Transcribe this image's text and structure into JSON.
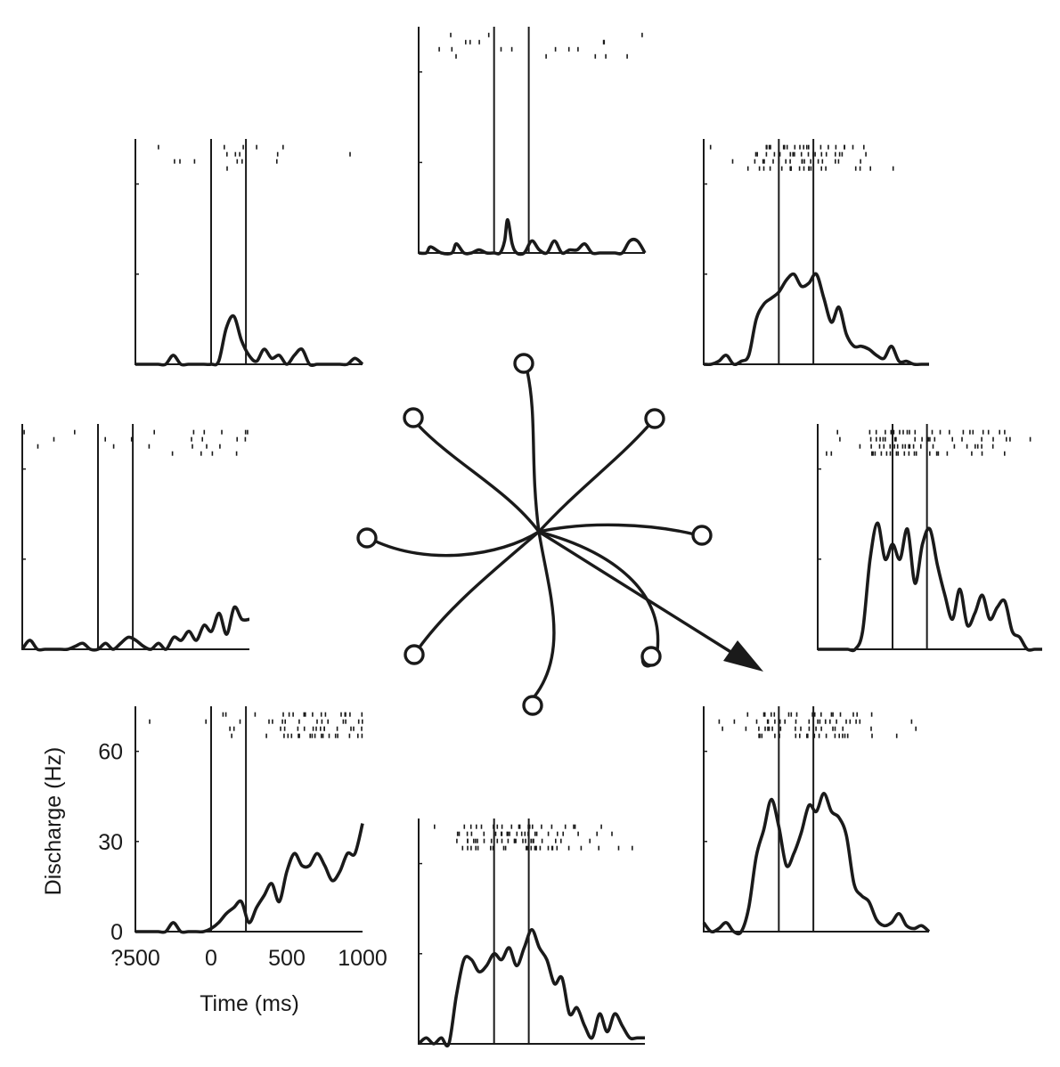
{
  "chart_data": {
    "type": "line",
    "figure": "peri-event rasters and spike density functions for eight reach directions",
    "xlabel": "Time (ms)",
    "ylabel": "Discharge (Hz)",
    "x_ticks": [
      "?500",
      "0",
      "500",
      "1000"
    ],
    "y_ticks": [
      "0",
      "30",
      "60"
    ],
    "xlim": [
      -500,
      1000
    ],
    "ylim": [
      0,
      75
    ],
    "event_lines_ms": [
      0,
      230
    ],
    "panels": [
      {
        "direction": "up",
        "x": [
          -500,
          -450,
          -420,
          -350,
          -280,
          -250,
          -200,
          -150,
          -100,
          -50,
          0,
          40,
          70,
          90,
          120,
          150,
          200,
          250,
          300,
          350,
          400,
          450,
          500,
          550,
          600,
          650,
          700,
          750,
          800,
          850,
          900,
          950,
          1000
        ],
        "y": [
          0,
          0,
          2,
          0,
          0,
          3,
          0,
          0,
          1,
          0,
          0,
          0,
          4,
          11,
          3,
          0,
          0,
          4,
          1,
          0,
          4,
          0,
          1,
          1,
          3,
          0,
          0,
          0,
          0,
          0,
          4,
          4,
          0
        ]
      },
      {
        "direction": "up-right",
        "x": [
          -500,
          -450,
          -400,
          -350,
          -300,
          -250,
          -200,
          -150,
          -100,
          -50,
          0,
          50,
          100,
          150,
          200,
          250,
          300,
          350,
          400,
          450,
          500,
          550,
          600,
          650,
          700,
          750,
          800,
          850,
          900,
          950,
          1000
        ],
        "y": [
          0,
          0,
          1,
          3,
          0,
          1,
          3,
          15,
          20,
          22,
          24,
          28,
          30,
          26,
          27,
          30,
          22,
          14,
          19,
          10,
          6,
          6,
          5,
          3,
          2,
          6,
          1,
          1,
          0,
          0,
          0
        ]
      },
      {
        "direction": "right",
        "x": [
          -500,
          -450,
          -400,
          -350,
          -300,
          -250,
          -200,
          -150,
          -100,
          -50,
          0,
          50,
          100,
          150,
          200,
          250,
          300,
          350,
          400,
          450,
          500,
          550,
          600,
          650,
          700,
          750,
          800,
          850,
          900,
          950,
          1000
        ],
        "y": [
          0,
          0,
          0,
          0,
          0,
          0,
          6,
          30,
          42,
          30,
          35,
          30,
          40,
          22,
          35,
          40,
          28,
          18,
          10,
          20,
          8,
          12,
          18,
          10,
          14,
          16,
          6,
          4,
          0,
          0,
          0
        ]
      },
      {
        "direction": "down-right",
        "x": [
          -500,
          -450,
          -400,
          -350,
          -300,
          -250,
          -200,
          -150,
          -100,
          -50,
          0,
          50,
          100,
          150,
          200,
          250,
          300,
          350,
          400,
          450,
          500,
          550,
          600,
          650,
          700,
          750,
          800,
          850,
          900,
          950,
          1000
        ],
        "y": [
          3,
          0,
          1,
          3,
          0,
          0,
          8,
          25,
          34,
          44,
          35,
          22,
          26,
          33,
          42,
          40,
          46,
          40,
          38,
          32,
          16,
          12,
          10,
          4,
          2,
          3,
          6,
          2,
          1,
          2,
          0
        ]
      },
      {
        "direction": "down",
        "x": [
          -500,
          -450,
          -400,
          -350,
          -300,
          -250,
          -200,
          -150,
          -100,
          -50,
          0,
          50,
          100,
          150,
          200,
          250,
          300,
          350,
          400,
          450,
          500,
          550,
          600,
          650,
          700,
          750,
          800,
          850,
          900,
          950,
          1000
        ],
        "y": [
          0,
          2,
          0,
          2,
          0,
          16,
          28,
          28,
          24,
          26,
          30,
          28,
          32,
          26,
          32,
          38,
          32,
          28,
          20,
          22,
          10,
          12,
          6,
          2,
          10,
          4,
          10,
          6,
          2,
          2,
          2
        ]
      },
      {
        "direction": "down-left",
        "x": [
          -500,
          -450,
          -400,
          -350,
          -300,
          -250,
          -200,
          -150,
          -100,
          -50,
          0,
          50,
          100,
          150,
          200,
          250,
          300,
          350,
          400,
          450,
          500,
          550,
          600,
          650,
          700,
          750,
          800,
          850,
          900,
          950,
          1000
        ],
        "y": [
          0,
          0,
          0,
          0,
          0,
          3,
          0,
          0,
          0,
          0,
          1,
          3,
          6,
          8,
          10,
          3,
          8,
          12,
          16,
          10,
          20,
          26,
          22,
          22,
          26,
          22,
          17,
          20,
          26,
          26,
          36
        ]
      },
      {
        "direction": "left",
        "x": [
          -500,
          -450,
          -400,
          -350,
          -300,
          -250,
          -200,
          -150,
          -100,
          -50,
          0,
          50,
          100,
          150,
          200,
          250,
          300,
          350,
          400,
          450,
          500,
          550,
          600,
          650,
          700,
          750,
          800,
          850,
          900,
          950,
          1000
        ],
        "y": [
          0,
          3,
          0,
          0,
          0,
          0,
          0,
          1,
          2,
          0,
          0,
          2,
          0,
          2,
          4,
          3,
          1,
          0,
          2,
          0,
          4,
          3,
          6,
          3,
          8,
          6,
          12,
          5,
          14,
          10,
          10
        ]
      },
      {
        "direction": "up-left",
        "x": [
          -500,
          -450,
          -400,
          -350,
          -300,
          -250,
          -200,
          -150,
          -100,
          -50,
          0,
          50,
          100,
          150,
          200,
          250,
          300,
          350,
          400,
          450,
          500,
          550,
          600,
          650,
          700,
          750,
          800,
          850,
          900,
          950,
          1000
        ],
        "y": [
          0,
          0,
          0,
          0,
          0,
          3,
          0,
          0,
          0,
          0,
          0,
          1,
          12,
          16,
          8,
          3,
          1,
          5,
          2,
          3,
          0,
          3,
          5,
          0,
          0,
          0,
          0,
          0,
          0,
          2,
          0
        ]
      }
    ]
  }
}
